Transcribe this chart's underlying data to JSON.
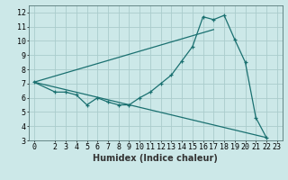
{
  "title": "",
  "xlabel": "Humidex (Indice chaleur)",
  "ylabel": "",
  "bg_color": "#cce8e8",
  "line_color": "#1a7070",
  "grid_color": "#aacccc",
  "xlim": [
    -0.5,
    23.5
  ],
  "ylim": [
    3,
    12.5
  ],
  "xticks": [
    0,
    2,
    3,
    4,
    5,
    6,
    7,
    8,
    9,
    10,
    11,
    12,
    13,
    14,
    15,
    16,
    17,
    18,
    19,
    20,
    21,
    22,
    23
  ],
  "yticks": [
    3,
    4,
    5,
    6,
    7,
    8,
    9,
    10,
    11,
    12
  ],
  "line1_x": [
    0,
    2,
    3,
    4,
    5,
    6,
    7,
    8,
    9,
    10,
    11,
    12,
    13,
    14,
    15,
    16,
    17,
    18,
    19,
    20,
    21,
    22
  ],
  "line1_y": [
    7.1,
    6.4,
    6.4,
    6.2,
    5.5,
    6.0,
    5.7,
    5.5,
    5.5,
    6.0,
    6.4,
    7.0,
    7.6,
    8.6,
    9.6,
    11.7,
    11.5,
    11.8,
    10.1,
    8.5,
    4.6,
    3.2
  ],
  "line2_x": [
    0,
    22
  ],
  "line2_y": [
    7.1,
    3.2
  ],
  "line3_x": [
    0,
    17
  ],
  "line3_y": [
    7.1,
    10.8
  ],
  "xlabel_fontsize": 7,
  "tick_fontsize": 6
}
